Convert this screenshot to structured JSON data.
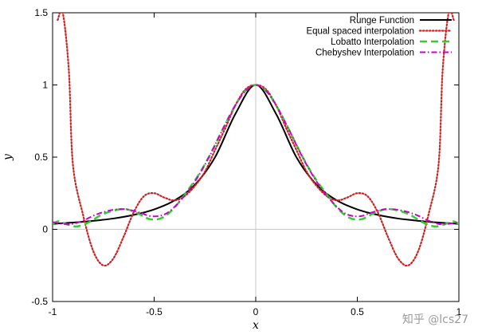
{
  "chart_data": {
    "type": "line",
    "title": "",
    "xlabel": "x",
    "ylabel": "y",
    "xlim": [
      -1,
      1
    ],
    "ylim": [
      -0.5,
      1.5
    ],
    "xticks": [
      -1,
      -0.5,
      0,
      0.5,
      1
    ],
    "xtick_labels": [
      "-1",
      "-0.5",
      "0",
      "0.5",
      "1"
    ],
    "yticks": [
      -0.5,
      0,
      0.5,
      1,
      1.5
    ],
    "ytick_labels": [
      "-0.5",
      "0",
      "0.5",
      "1",
      "1.5"
    ],
    "legend_position": "top-right",
    "series": [
      {
        "name": "Runge Function",
        "color": "#000000",
        "style": "solid",
        "x": [
          -1,
          -0.9,
          -0.8,
          -0.7,
          -0.6,
          -0.5,
          -0.4,
          -0.3,
          -0.2,
          -0.1,
          0,
          0.1,
          0.2,
          0.3,
          0.4,
          0.5,
          0.6,
          0.7,
          0.8,
          0.9,
          1
        ],
        "y": [
          0.038,
          0.047,
          0.059,
          0.075,
          0.1,
          0.138,
          0.2,
          0.308,
          0.5,
          0.8,
          1,
          0.8,
          0.5,
          0.308,
          0.2,
          0.138,
          0.1,
          0.075,
          0.059,
          0.047,
          0.038
        ]
      },
      {
        "name": "Equal spaced interpolation",
        "color": "#cc2222",
        "style": "dotted",
        "x": [
          -0.975,
          -0.95,
          -0.92,
          -0.9,
          -0.85,
          -0.8,
          -0.75,
          -0.7,
          -0.65,
          -0.6,
          -0.55,
          -0.5,
          -0.45,
          -0.4,
          -0.35,
          -0.3,
          -0.25,
          -0.2,
          -0.15,
          -0.1,
          -0.05,
          0,
          0.05,
          0.1,
          0.15,
          0.2,
          0.25,
          0.3,
          0.35,
          0.4,
          0.45,
          0.5,
          0.55,
          0.6,
          0.65,
          0.7,
          0.75,
          0.8,
          0.85,
          0.9,
          0.92,
          0.95,
          0.975
        ],
        "y": [
          1.45,
          1.5,
          1.1,
          0.45,
          0.1,
          -0.15,
          -0.25,
          -0.2,
          -0.05,
          0.12,
          0.23,
          0.25,
          0.22,
          0.2,
          0.23,
          0.3,
          0.4,
          0.55,
          0.7,
          0.86,
          0.97,
          1,
          0.97,
          0.86,
          0.7,
          0.55,
          0.4,
          0.3,
          0.23,
          0.2,
          0.22,
          0.25,
          0.23,
          0.12,
          -0.05,
          -0.2,
          -0.25,
          -0.15,
          0.1,
          0.45,
          1.1,
          1.5,
          1.45
        ]
      },
      {
        "name": "Lobatto Interpolation",
        "color": "#33cc33",
        "style": "dashed",
        "x": [
          -1,
          -0.97,
          -0.93,
          -0.88,
          -0.82,
          -0.76,
          -0.7,
          -0.64,
          -0.58,
          -0.52,
          -0.46,
          -0.4,
          -0.34,
          -0.28,
          -0.22,
          -0.16,
          -0.1,
          -0.05,
          0,
          0.05,
          0.1,
          0.16,
          0.22,
          0.28,
          0.34,
          0.4,
          0.46,
          0.52,
          0.58,
          0.64,
          0.7,
          0.76,
          0.82,
          0.88,
          0.93,
          0.97,
          1
        ],
        "y": [
          0.038,
          0.055,
          0.035,
          0.02,
          0.05,
          0.1,
          0.13,
          0.14,
          0.11,
          0.07,
          0.08,
          0.15,
          0.26,
          0.38,
          0.53,
          0.7,
          0.86,
          0.96,
          1,
          0.96,
          0.86,
          0.7,
          0.53,
          0.38,
          0.26,
          0.15,
          0.08,
          0.07,
          0.11,
          0.14,
          0.13,
          0.1,
          0.05,
          0.02,
          0.035,
          0.055,
          0.038
        ]
      },
      {
        "name": "Chebyshev Interpolation",
        "color": "#cc00cc",
        "style": "dashdot",
        "x": [
          -1,
          -0.96,
          -0.91,
          -0.85,
          -0.79,
          -0.72,
          -0.65,
          -0.58,
          -0.51,
          -0.44,
          -0.37,
          -0.3,
          -0.23,
          -0.16,
          -0.1,
          -0.05,
          0,
          0.05,
          0.1,
          0.16,
          0.23,
          0.3,
          0.37,
          0.44,
          0.51,
          0.58,
          0.65,
          0.72,
          0.79,
          0.85,
          0.91,
          0.96,
          1
        ],
        "y": [
          0.05,
          0.04,
          0.035,
          0.06,
          0.1,
          0.13,
          0.14,
          0.12,
          0.09,
          0.11,
          0.2,
          0.33,
          0.5,
          0.7,
          0.86,
          0.96,
          1,
          0.96,
          0.86,
          0.7,
          0.5,
          0.33,
          0.2,
          0.11,
          0.09,
          0.12,
          0.14,
          0.13,
          0.1,
          0.06,
          0.035,
          0.04,
          0.05
        ]
      }
    ],
    "annotations": [
      {
        "text": "知乎 @lcs27",
        "kind": "watermark",
        "position": "bottom-right"
      }
    ]
  }
}
